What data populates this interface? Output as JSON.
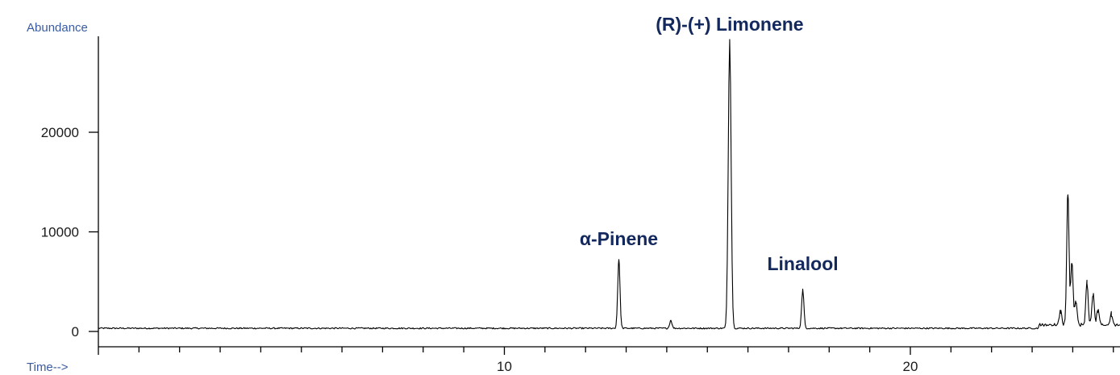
{
  "colors": {
    "trace": "#000000",
    "axis_title": "#3a5ba0",
    "peak_label": "#13285c"
  },
  "chart_data": {
    "type": "line",
    "ylabel": "Abundance",
    "xlabel": "Time-->",
    "xlim": [
      0,
      25.2
    ],
    "ylim": [
      0,
      29000
    ],
    "x_ticks": [
      10,
      20
    ],
    "x_minor_tick_step": 1,
    "y_ticks": [
      0,
      10000,
      20000
    ],
    "grid": false,
    "baseline": 320,
    "series": [
      {
        "peaks": [
          {
            "x": 12.82,
            "y": 6900
          },
          {
            "x": 14.1,
            "y": 800
          },
          {
            "x": 15.55,
            "y": 29000
          },
          {
            "x": 17.35,
            "y": 3900
          },
          {
            "x": 23.7,
            "y": 1500
          },
          {
            "x": 23.88,
            "y": 13400
          },
          {
            "x": 23.98,
            "y": 6500
          },
          {
            "x": 24.08,
            "y": 2500
          },
          {
            "x": 24.35,
            "y": 4500
          },
          {
            "x": 24.5,
            "y": 3200
          },
          {
            "x": 24.62,
            "y": 1600
          },
          {
            "x": 24.95,
            "y": 1200
          }
        ]
      }
    ],
    "annotations": [
      {
        "text": "α-Pinene",
        "x": 12.82,
        "y": 6900
      },
      {
        "text": "(R)-(+) Limonene",
        "x": 15.55,
        "y": 29000
      },
      {
        "text": "Linalool",
        "x": 17.35,
        "y": 3900
      }
    ]
  }
}
